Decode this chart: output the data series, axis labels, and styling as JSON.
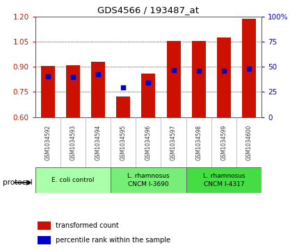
{
  "title": "GDS4566 / 193487_at",
  "categories": [
    "GSM1034592",
    "GSM1034593",
    "GSM1034594",
    "GSM1034595",
    "GSM1034596",
    "GSM1034597",
    "GSM1034598",
    "GSM1034599",
    "GSM1034600"
  ],
  "red_values": [
    0.905,
    0.91,
    0.93,
    0.725,
    0.86,
    1.055,
    1.055,
    1.075,
    1.185
  ],
  "blue_values": [
    0.845,
    0.84,
    0.855,
    0.775,
    0.805,
    0.88,
    0.875,
    0.875,
    0.89
  ],
  "ylim_left": [
    0.6,
    1.2
  ],
  "ylim_right": [
    0,
    100
  ],
  "yticks_left": [
    0.6,
    0.75,
    0.9,
    1.05,
    1.2
  ],
  "yticks_right": [
    0,
    25,
    50,
    75,
    100
  ],
  "red_color": "#CC1100",
  "blue_color": "#0000CC",
  "bar_bottom": 0.6,
  "group_labels": [
    "E. coli control",
    "L. rhamnosus\nCNCM I-3690",
    "L. rhamnosus\nCNCM I-4317"
  ],
  "group_colors": [
    "#aaffaa",
    "#77ee77",
    "#44dd44"
  ],
  "group_ranges": [
    [
      0,
      3
    ],
    [
      3,
      6
    ],
    [
      6,
      9
    ]
  ],
  "legend_red": "transformed count",
  "legend_blue": "percentile rank within the sample",
  "tick_label_color_left": "#CC1100",
  "tick_label_color_right": "#0000CC",
  "xtick_bg_color": "#d4d4d4",
  "bar_width": 0.55
}
